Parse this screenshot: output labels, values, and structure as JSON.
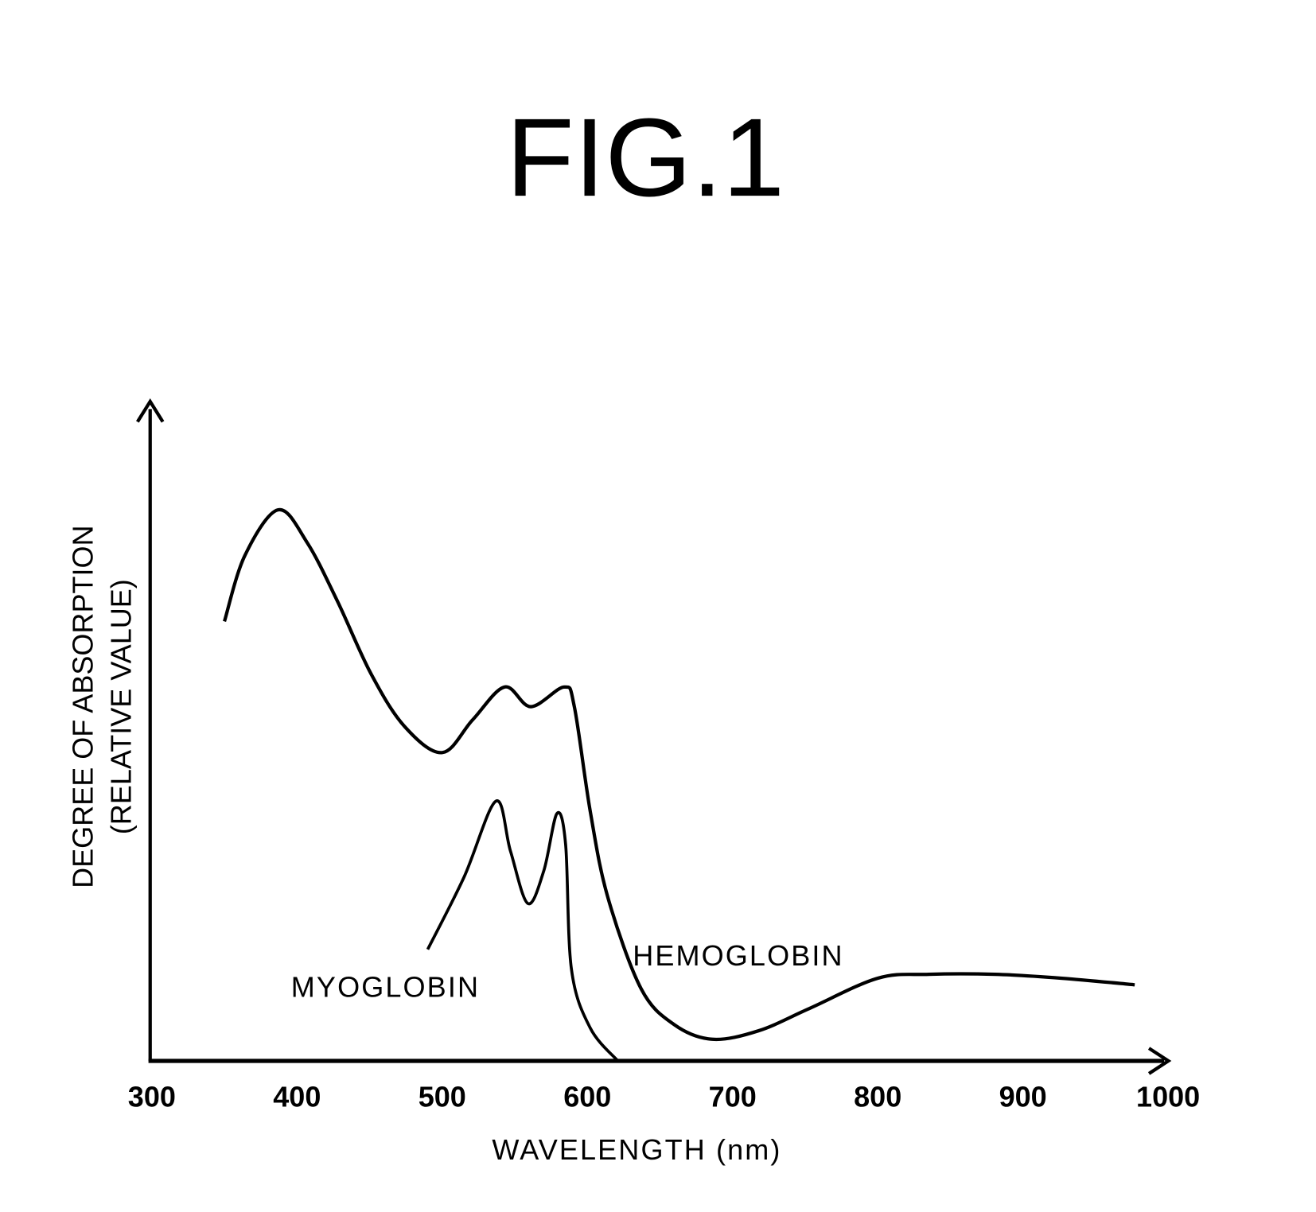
{
  "chart_data": {
    "type": "line",
    "title": "FIG.1",
    "xlabel": "WAVELENGTH (nm)",
    "ylabel": "DEGREE OF ABSORPTION",
    "ylabel2": "(RELATIVE VALUE)",
    "xlim": [
      300,
      1000
    ],
    "ylim": [
      0,
      100
    ],
    "xticks": [
      "300",
      "400",
      "500",
      "600",
      "700",
      "800",
      "900",
      "1000"
    ],
    "grid": false,
    "series": [
      {
        "name": "HEMOGLOBIN",
        "x": [
          350,
          364,
          387,
          407,
          428,
          451,
          474,
          500,
          521,
          543,
          561,
          584,
          591,
          602,
          614,
          637,
          660,
          686,
          718,
          753,
          800,
          835,
          881,
          927,
          977
        ],
        "y": [
          67,
          77,
          84,
          79,
          70,
          59,
          51,
          47,
          52,
          57,
          54,
          57,
          54,
          38,
          25,
          11,
          5.5,
          3.3,
          4.6,
          8,
          12.6,
          13.2,
          13.2,
          12.6,
          11.6
        ]
      },
      {
        "name": "MYOGLOBIN",
        "x": [
          490,
          515,
          537,
          547,
          559,
          570,
          579,
          585,
          589,
          602,
          621
        ],
        "y": [
          17,
          28,
          39.6,
          32,
          24,
          29,
          37.7,
          33,
          14,
          5,
          0
        ]
      }
    ]
  }
}
